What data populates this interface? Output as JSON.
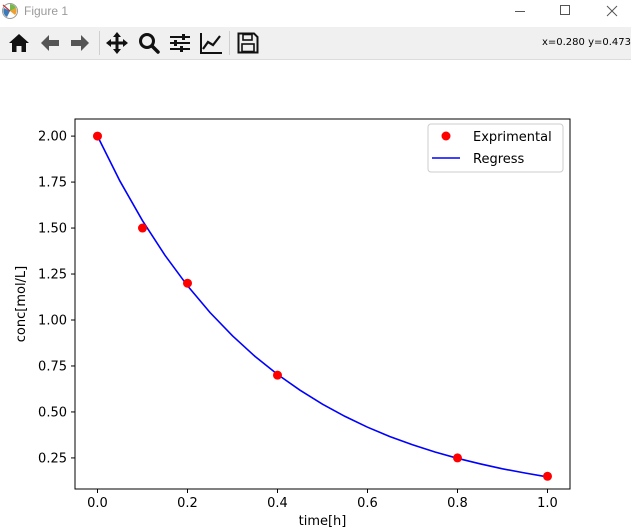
{
  "window": {
    "title": "Figure 1"
  },
  "toolbar": {
    "coords": "x=0.280 y=0.473",
    "tools": [
      {
        "name": "home",
        "icon": "home-icon"
      },
      {
        "name": "back",
        "icon": "arrow-left-icon"
      },
      {
        "name": "forward",
        "icon": "arrow-right-icon"
      },
      {
        "name": "pan",
        "icon": "move-icon"
      },
      {
        "name": "zoom",
        "icon": "magnifier-icon"
      },
      {
        "name": "configure-subplots",
        "icon": "sliders-icon"
      },
      {
        "name": "edit-axis",
        "icon": "line-chart-icon"
      },
      {
        "name": "save",
        "icon": "floppy-disk-icon"
      }
    ]
  },
  "chart_data": {
    "type": "scatter",
    "xlabel": "time[h]",
    "ylabel": "conc[mol/L]",
    "xlim": [
      -0.05,
      1.05
    ],
    "ylim": [
      0.081,
      2.093
    ],
    "xticks": [
      "0.0",
      "0.2",
      "0.4",
      "0.6",
      "0.8",
      "1.0"
    ],
    "yticks": [
      "0.25",
      "0.50",
      "0.75",
      "1.00",
      "1.25",
      "1.50",
      "1.75",
      "2.00"
    ],
    "legend_position": "top-right",
    "series": [
      {
        "name": "Exprimental",
        "kind": "points",
        "color": "#ff0000",
        "x": [
          0.0,
          0.1,
          0.2,
          0.4,
          0.8,
          1.0
        ],
        "y": [
          2.0,
          1.5,
          1.2,
          0.7,
          0.25,
          0.15
        ]
      },
      {
        "name": "Regress",
        "kind": "line",
        "color": "#0000ff",
        "x": [
          0.0,
          0.05,
          0.1,
          0.15,
          0.2,
          0.25,
          0.3,
          0.35,
          0.4,
          0.45,
          0.5,
          0.55,
          0.6,
          0.65,
          0.7,
          0.75,
          0.8,
          0.85,
          0.9,
          0.95,
          1.0
        ],
        "y": [
          2.0,
          1.755,
          1.54,
          1.352,
          1.186,
          1.041,
          0.914,
          0.802,
          0.704,
          0.618,
          0.542,
          0.476,
          0.417,
          0.366,
          0.322,
          0.282,
          0.248,
          0.218,
          0.191,
          0.168,
          0.147
        ]
      }
    ]
  }
}
